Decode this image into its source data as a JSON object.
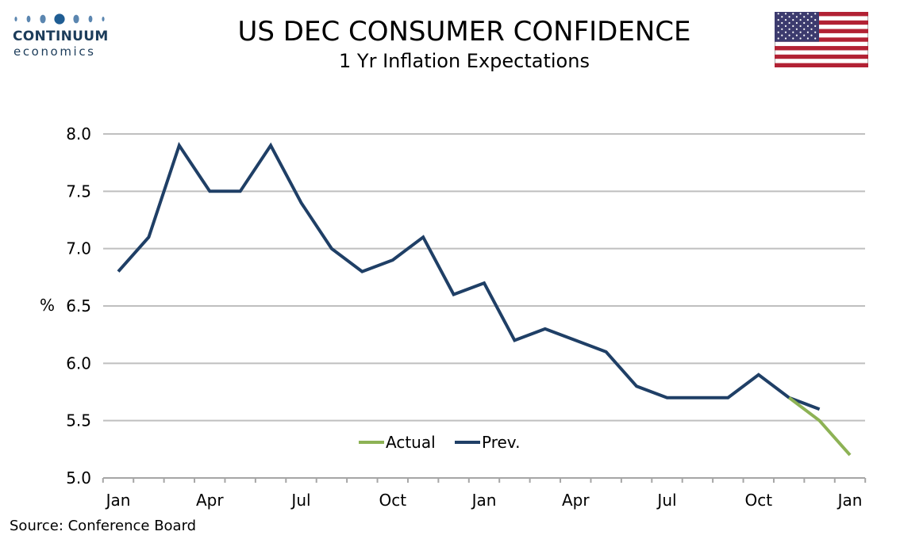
{
  "header": {
    "logo_line1": "CONTINUUM",
    "logo_line2": "economics",
    "title": "US DEC CONSUMER CONFIDENCE",
    "subtitle": "1 Yr Inflation Expectations"
  },
  "footer": {
    "source": "Source: Conference Board"
  },
  "colors": {
    "prev_line": "#1f3f66",
    "actual_line": "#8db255",
    "grid": "#bfbfbf",
    "logo": "#1c3c5a",
    "flag_red": "#b22234",
    "flag_blue": "#3c3b6e"
  },
  "icons": {
    "flag": "us-flag-icon",
    "logo": "continuum-economics-logo"
  },
  "chart_data": {
    "type": "line",
    "title": "US DEC CONSUMER CONFIDENCE",
    "subtitle": "1 Yr Inflation Expectations",
    "ylabel": "%",
    "ylim": [
      5.0,
      8.0
    ],
    "yticks": [
      "5.0",
      "5.5",
      "6.0",
      "6.5",
      "7.0",
      "7.5",
      "8.0"
    ],
    "x_tick_labels": [
      "Jan",
      "Apr",
      "Jul",
      "Oct",
      "Jan",
      "Apr",
      "Jul",
      "Oct",
      "Jan"
    ],
    "grid": true,
    "legend_position": "bottom-center",
    "series": [
      {
        "name": "Actual",
        "values": [
          null,
          null,
          null,
          null,
          null,
          null,
          null,
          null,
          null,
          null,
          null,
          null,
          null,
          null,
          null,
          null,
          null,
          null,
          null,
          null,
          null,
          null,
          5.7,
          5.5,
          5.2
        ]
      },
      {
        "name": "Prev.",
        "values": [
          6.8,
          7.1,
          7.9,
          7.5,
          7.5,
          7.9,
          7.4,
          7.0,
          6.8,
          6.9,
          7.1,
          6.6,
          6.7,
          6.2,
          6.3,
          6.2,
          6.1,
          5.8,
          5.7,
          5.7,
          5.7,
          5.9,
          5.7,
          5.6,
          null
        ]
      }
    ]
  }
}
